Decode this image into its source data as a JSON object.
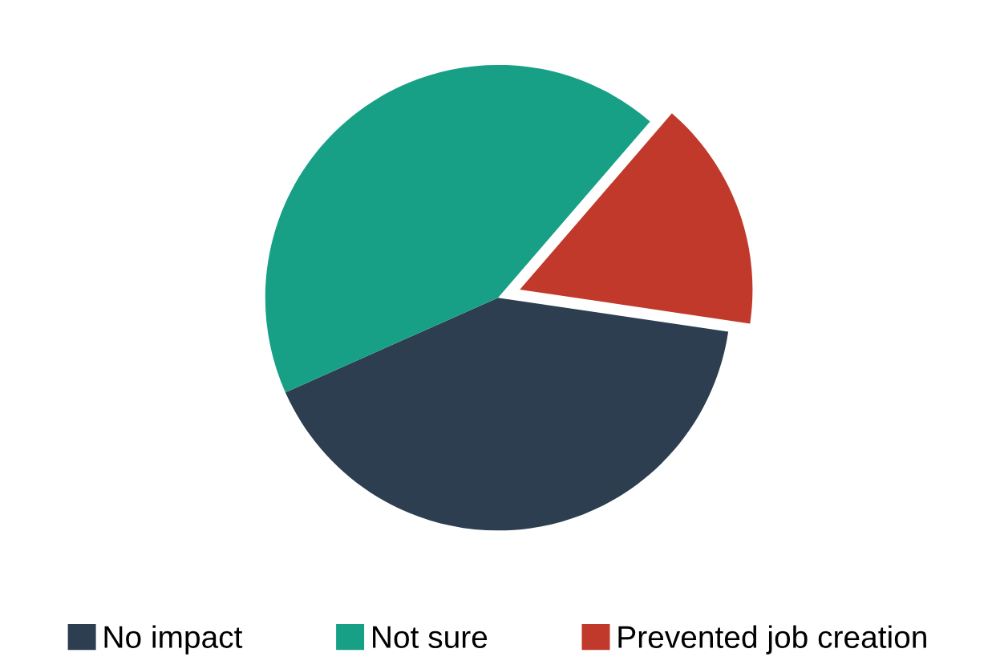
{
  "chart_data": {
    "type": "pie",
    "categories": [
      "No impact",
      "Not sure",
      "Prevented job creation"
    ],
    "values": [
      41,
      43,
      16
    ],
    "colors": [
      "#2c3e50",
      "#17a085",
      "#c0392b"
    ],
    "legend": "bottom"
  }
}
